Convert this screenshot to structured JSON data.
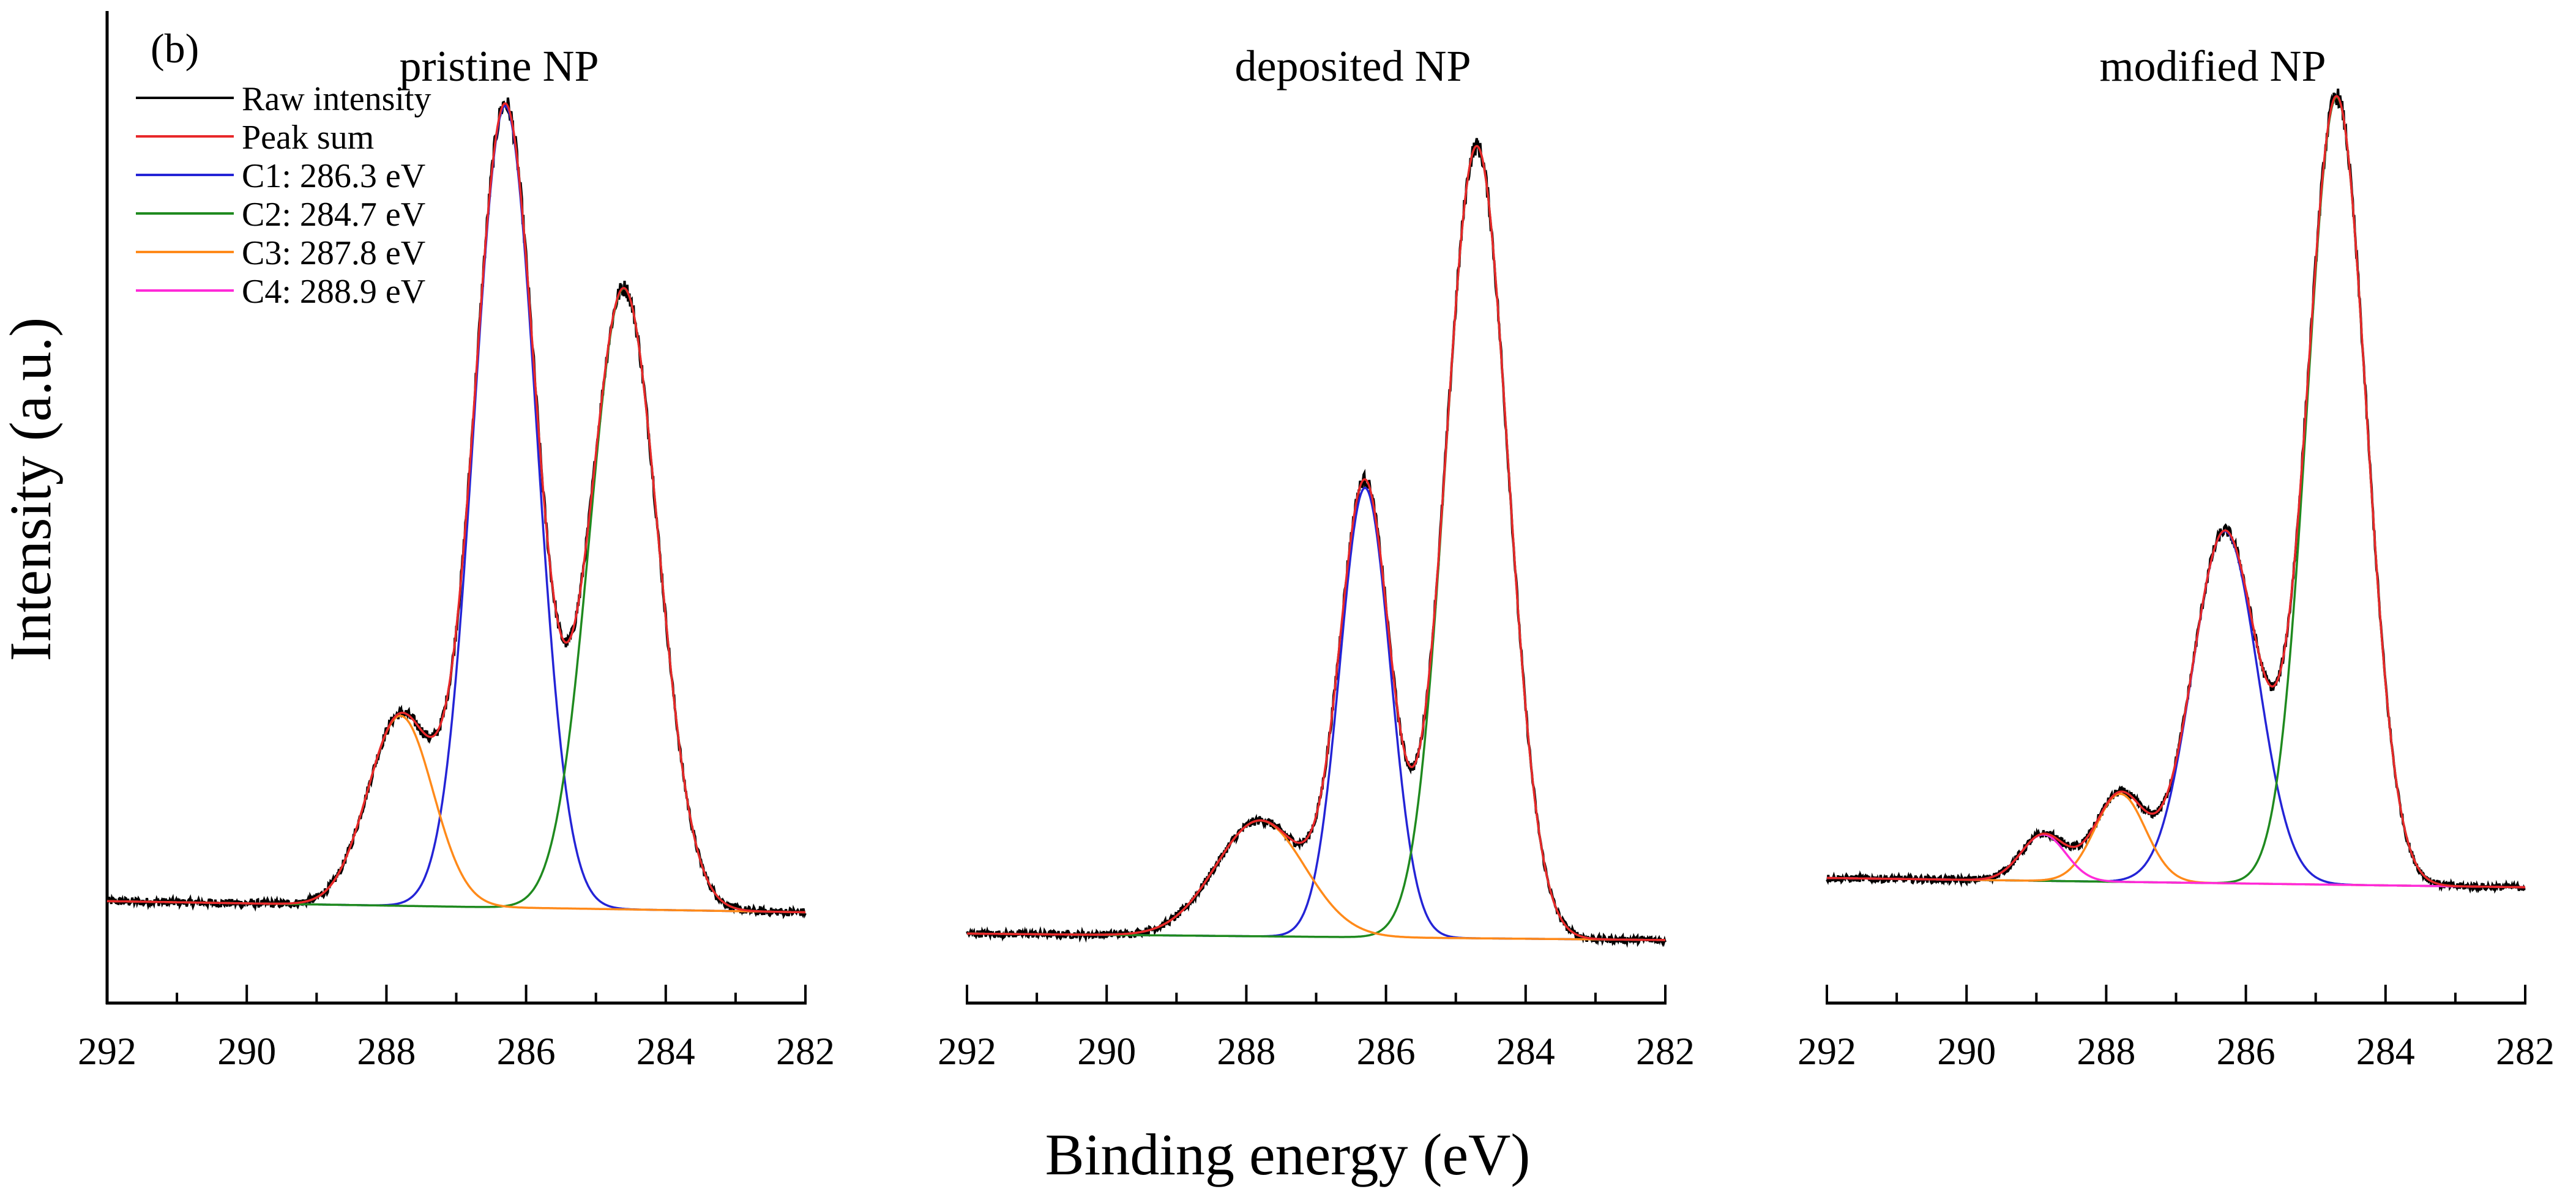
{
  "chart_data": {
    "type": "line",
    "panel_label": "(b)",
    "xlabel": "Binding energy (eV)",
    "ylabel": "Intensity (a.u.)",
    "xlim": [
      292,
      282
    ],
    "x_reversed": true,
    "ylim": [
      0,
      100
    ],
    "x_ticks": [
      292,
      290,
      288,
      286,
      284,
      282
    ],
    "legend": {
      "position": "top-left",
      "entries": [
        {
          "label": "Raw intensity",
          "color": "#000000"
        },
        {
          "label": "Peak sum",
          "color": "#e8282a"
        },
        {
          "label": "C1: 286.3 eV",
          "color": "#2424d6"
        },
        {
          "label": "C2: 284.7 eV",
          "color": "#1f8a1f"
        },
        {
          "label": "C3: 287.8 eV",
          "color": "#ff8a1a"
        },
        {
          "label": "C4: 288.9 eV",
          "color": "#ff2ad8"
        }
      ]
    },
    "panels": [
      {
        "title": "pristine NP",
        "baseline": [
          11.0,
          9.8
        ],
        "noise": 0.45,
        "components": [
          {
            "name": "C1",
            "center": 286.3,
            "height": 86.5,
            "fwhm": 1.05,
            "color": "#2424d6"
          },
          {
            "name": "C2",
            "center": 284.6,
            "height": 67.0,
            "fwhm": 1.15,
            "color": "#1f8a1f"
          },
          {
            "name": "C3",
            "center": 287.8,
            "height": 20.5,
            "fwhm": 1.1,
            "color": "#ff8a1a"
          }
        ]
      },
      {
        "title": "deposited NP",
        "baseline": [
          7.5,
          6.8
        ],
        "noise": 0.4,
        "components": [
          {
            "name": "C1",
            "center": 286.3,
            "height": 48.5,
            "fwhm": 0.85,
            "color": "#2424d6"
          },
          {
            "name": "C2",
            "center": 284.7,
            "height": 85.5,
            "fwhm": 1.05,
            "color": "#1f8a1f"
          },
          {
            "name": "C3",
            "center": 287.8,
            "height": 12.5,
            "fwhm": 1.5,
            "color": "#ff8a1a"
          }
        ]
      },
      {
        "title": "modified NP",
        "baseline": [
          13.5,
          12.5
        ],
        "noise": 0.4,
        "components": [
          {
            "name": "C1",
            "center": 286.3,
            "height": 38.0,
            "fwhm": 1.1,
            "color": "#2424d6"
          },
          {
            "name": "C2",
            "center": 284.7,
            "height": 85.0,
            "fwhm": 1.0,
            "color": "#1f8a1f"
          },
          {
            "name": "C3",
            "center": 287.8,
            "height": 9.5,
            "fwhm": 0.85,
            "color": "#ff8a1a"
          },
          {
            "name": "C4",
            "center": 288.9,
            "height": 5.0,
            "fwhm": 0.75,
            "color": "#ff2ad8"
          }
        ]
      }
    ]
  }
}
